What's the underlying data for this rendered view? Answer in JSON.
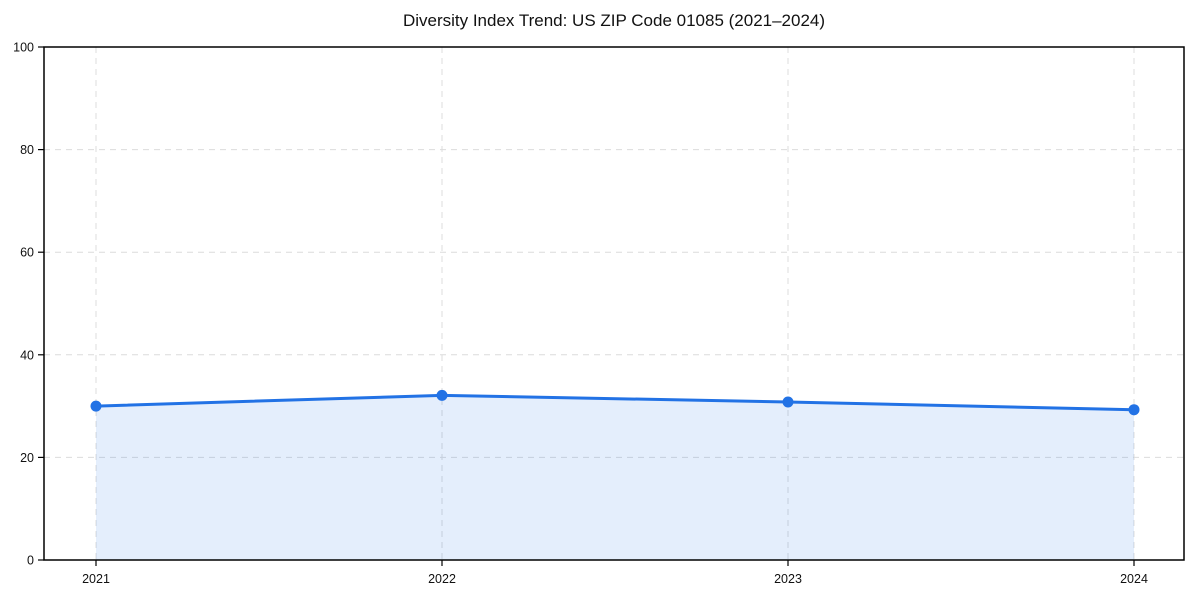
{
  "page": {
    "background": "#ffffff"
  },
  "chart_data": {
    "type": "area",
    "title": "Diversity Index Trend: US ZIP Code 01085 (2021–2024)",
    "categories": [
      "2021",
      "2022",
      "2023",
      "2024"
    ],
    "values": [
      30.0,
      32.1,
      30.8,
      29.3
    ],
    "xlabel": "",
    "ylabel": "",
    "ylim": [
      0,
      100
    ],
    "y_ticks": [
      0,
      20,
      40,
      60,
      80,
      100
    ],
    "y_tick_labels": [
      "0",
      "20",
      "40",
      "60",
      "80",
      "100"
    ],
    "grid": true,
    "grid_style": "dashed",
    "legend": false,
    "line_color": "#2272e5",
    "marker_color": "#2272e5",
    "fill_color": "#2272e5",
    "fill_opacity": 0.12,
    "grid_color": "#dcdcdc",
    "axis_color": "#000000",
    "tick_label_color": "#111111",
    "title_color": "#111111"
  }
}
